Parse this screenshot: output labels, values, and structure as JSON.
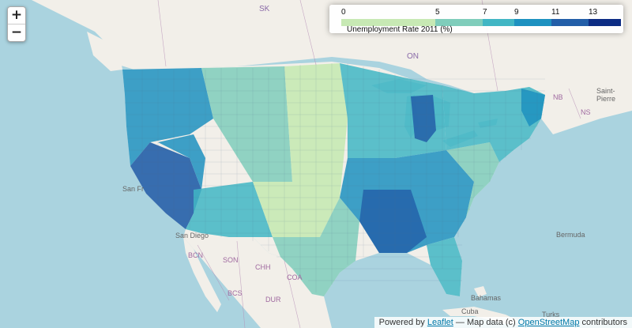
{
  "zoom": {
    "in_label": "+",
    "out_label": "−"
  },
  "legend": {
    "title": "Unemployment Rate 2011 (%)",
    "ticks": [
      "0",
      "5",
      "7",
      "9",
      "11",
      "13"
    ],
    "colors": [
      "#c7e9b4",
      "#7fcdbb",
      "#41b6c4",
      "#1d91c0",
      "#225ea8",
      "#0c2c84"
    ]
  },
  "attribution": {
    "prefix": "Powered by",
    "leaflet_link": "Leaflet",
    "middle": "— Map data (c)",
    "osm_link": "OpenStreetMap",
    "suffix": "contributors"
  },
  "labels": [
    {
      "name": "sk",
      "text": "SK"
    },
    {
      "name": "on",
      "text": "ON"
    },
    {
      "name": "nb",
      "text": "NB"
    },
    {
      "name": "ns",
      "text": "NS"
    },
    {
      "name": "saint-pierre",
      "text": "Saint-Pierre"
    },
    {
      "name": "bermuda",
      "text": "Bermuda"
    },
    {
      "name": "bcn",
      "text": "BCN"
    },
    {
      "name": "son",
      "text": "SON"
    },
    {
      "name": "chh",
      "text": "CHH"
    },
    {
      "name": "coa",
      "text": "COA"
    },
    {
      "name": "bcs",
      "text": "BCS"
    },
    {
      "name": "dur",
      "text": "DUR"
    },
    {
      "name": "bahamas",
      "text": "Bahamas"
    },
    {
      "name": "cuba",
      "text": "Cuba"
    },
    {
      "name": "turks",
      "text": "Turks"
    },
    {
      "name": "san-diego",
      "text": "San Diego"
    },
    {
      "name": "san-francisco",
      "text": "San Fr"
    }
  ]
}
